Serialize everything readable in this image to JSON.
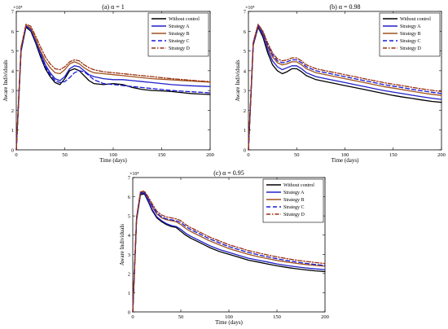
{
  "figure": {
    "colors": {
      "Without control": "#000000",
      "Strategy A": "#2020c8",
      "Strategy B": "#a0521e",
      "Strategy C": "#1a1ad8",
      "Strategy D": "#9a3010"
    },
    "dashes": {
      "Without control": "",
      "Strategy A": "",
      "Strategy B": "",
      "Strategy C": "5,3",
      "Strategy D": "5,2,1.5,2"
    }
  },
  "chart_data": [
    {
      "type": "line",
      "title": "(a) α = 1",
      "xlabel": "Time (days)",
      "ylabel": "Aware Individuals",
      "xlim": [
        0,
        200
      ],
      "ylim": [
        0,
        70000
      ],
      "xticks": [
        "0",
        "50",
        "100",
        "150",
        "200"
      ],
      "yticks": [
        "0",
        "1",
        "2",
        "3",
        "4",
        "5",
        "6",
        "7"
      ],
      "yscale_label": "×10⁴",
      "legend": "top-right",
      "x": [
        0,
        5,
        10,
        15,
        20,
        25,
        30,
        35,
        40,
        45,
        50,
        55,
        60,
        65,
        70,
        75,
        80,
        90,
        100,
        110,
        120,
        130,
        140,
        150,
        160,
        170,
        180,
        190,
        200
      ],
      "series": [
        {
          "name": "Without control",
          "values": [
            0,
            50000,
            62000,
            60000,
            54000,
            47000,
            41000,
            37000,
            34000,
            33000,
            36000,
            40000,
            41000,
            40000,
            37500,
            35000,
            33500,
            33000,
            33500,
            33000,
            31500,
            30500,
            30000,
            29800,
            29500,
            29000,
            28500,
            28200,
            28000
          ]
        },
        {
          "name": "Strategy A",
          "values": [
            0,
            51000,
            62500,
            61000,
            55000,
            49000,
            43000,
            39000,
            36000,
            35000,
            37000,
            41000,
            42500,
            42000,
            40000,
            38000,
            37000,
            36000,
            35500,
            35500,
            35000,
            34500,
            34000,
            33500,
            33000,
            32700,
            32400,
            32200,
            32000
          ]
        },
        {
          "name": "Strategy B",
          "values": [
            0,
            51500,
            63000,
            61500,
            56000,
            50000,
            45000,
            41500,
            39000,
            38500,
            40500,
            43500,
            44500,
            43500,
            41500,
            40000,
            39000,
            38500,
            38000,
            37500,
            37000,
            36500,
            36000,
            35700,
            35400,
            35100,
            34800,
            34500,
            34200
          ]
        },
        {
          "name": "Strategy C",
          "values": [
            0,
            51000,
            62500,
            60500,
            54500,
            48000,
            42000,
            38000,
            35000,
            34000,
            34500,
            36500,
            39000,
            40000,
            39500,
            37500,
            35500,
            33500,
            33000,
            32500,
            32000,
            31500,
            31000,
            30500,
            30000,
            29700,
            29400,
            29100,
            28800
          ]
        },
        {
          "name": "Strategy D",
          "values": [
            0,
            52000,
            63500,
            62500,
            57500,
            52000,
            47000,
            43500,
            41000,
            40500,
            42000,
            44500,
            45500,
            45000,
            43000,
            41500,
            40500,
            39500,
            39000,
            38500,
            38000,
            37500,
            37000,
            36500,
            36000,
            35600,
            35200,
            34800,
            34500
          ]
        }
      ]
    },
    {
      "type": "line",
      "title": "(b) α = 0.98",
      "xlabel": "Time (days)",
      "ylabel": "Aware Individuals",
      "xlim": [
        0,
        200
      ],
      "ylim": [
        0,
        70000
      ],
      "xticks": [
        "0",
        "50",
        "100",
        "150",
        "200"
      ],
      "yticks": [
        "0",
        "1",
        "2",
        "3",
        "4",
        "5",
        "6",
        "7"
      ],
      "yscale_label": "×10⁴",
      "legend": "top-right",
      "x": [
        0,
        5,
        10,
        15,
        20,
        25,
        30,
        35,
        40,
        45,
        50,
        55,
        60,
        70,
        80,
        90,
        100,
        110,
        120,
        130,
        140,
        150,
        160,
        170,
        180,
        190,
        200
      ],
      "series": [
        {
          "name": "Without control",
          "values": [
            0,
            53000,
            62000,
            57000,
            49000,
            43000,
            40000,
            38500,
            39500,
            41000,
            41000,
            39500,
            37500,
            35500,
            34500,
            33500,
            32500,
            31500,
            30500,
            29500,
            28500,
            27500,
            26700,
            26000,
            25200,
            24500,
            24000
          ]
        },
        {
          "name": "Strategy A",
          "values": [
            0,
            53500,
            62500,
            58000,
            50500,
            45000,
            42000,
            40500,
            41500,
            42500,
            42500,
            41000,
            39000,
            37000,
            36000,
            35000,
            34000,
            33000,
            32000,
            31000,
            30000,
            29200,
            28400,
            27600,
            26800,
            26100,
            25500
          ]
        },
        {
          "name": "Strategy B",
          "values": [
            0,
            54000,
            63000,
            59000,
            52000,
            47000,
            44000,
            43000,
            43500,
            44500,
            44500,
            43000,
            41000,
            39000,
            38000,
            37000,
            36000,
            35000,
            34000,
            33000,
            32000,
            31200,
            30400,
            29600,
            28800,
            28100,
            27500
          ]
        },
        {
          "name": "Strategy C",
          "values": [
            0,
            54000,
            63000,
            59500,
            53000,
            48000,
            45000,
            44000,
            44500,
            45500,
            45500,
            44000,
            42000,
            40000,
            39000,
            38000,
            37000,
            36000,
            35000,
            34000,
            33000,
            32200,
            31400,
            30600,
            29800,
            29100,
            28500
          ]
        },
        {
          "name": "Strategy D",
          "values": [
            0,
            54500,
            63500,
            60000,
            54000,
            49000,
            46000,
            45000,
            45500,
            46500,
            46500,
            45000,
            43000,
            41000,
            40000,
            39000,
            38000,
            37000,
            36000,
            35000,
            34000,
            33200,
            32400,
            31600,
            30800,
            30100,
            29500
          ]
        }
      ]
    },
    {
      "type": "line",
      "title": "(c) α = 0.95",
      "xlabel": "Time (days)",
      "ylabel": "Aware Individuals",
      "xlim": [
        0,
        200
      ],
      "ylim": [
        0,
        70000
      ],
      "xticks": [
        "0",
        "50",
        "100",
        "150",
        "200"
      ],
      "yticks": [
        "0",
        "1",
        "2",
        "3",
        "4",
        "5",
        "6",
        "7"
      ],
      "yscale_label": "×10⁴",
      "legend": "top-right",
      "x": [
        0,
        4,
        8,
        12,
        16,
        20,
        25,
        30,
        35,
        40,
        45,
        50,
        55,
        60,
        70,
        80,
        90,
        100,
        110,
        120,
        130,
        140,
        150,
        160,
        170,
        180,
        190,
        200
      ],
      "series": [
        {
          "name": "Without control",
          "values": [
            0,
            48000,
            61000,
            61500,
            57500,
            53000,
            49000,
            47000,
            45500,
            44500,
            44000,
            42000,
            40000,
            38500,
            36000,
            33500,
            31500,
            30000,
            28500,
            27000,
            26000,
            25000,
            24000,
            23200,
            22500,
            21900,
            21400,
            21000
          ]
        },
        {
          "name": "Strategy A",
          "values": [
            0,
            48500,
            61500,
            62000,
            58000,
            53500,
            49500,
            47500,
            46000,
            45000,
            44500,
            43000,
            41000,
            39500,
            37000,
            34500,
            32500,
            31000,
            29500,
            28000,
            27000,
            26000,
            25000,
            24200,
            23500,
            22900,
            22400,
            22000
          ]
        },
        {
          "name": "Strategy B",
          "values": [
            0,
            49000,
            62000,
            62500,
            59000,
            55000,
            51000,
            49000,
            48000,
            47500,
            47000,
            45500,
            43500,
            42000,
            39500,
            37000,
            35000,
            33000,
            31500,
            30000,
            28800,
            27800,
            26800,
            26000,
            25300,
            24700,
            24200,
            23800
          ]
        },
        {
          "name": "Strategy C",
          "values": [
            0,
            49000,
            62000,
            62500,
            59000,
            55500,
            51500,
            49500,
            48500,
            48000,
            47500,
            46500,
            44500,
            43000,
            40500,
            38000,
            36000,
            34000,
            32500,
            31000,
            29800,
            28700,
            27700,
            26800,
            26000,
            25300,
            24700,
            24200
          ]
        },
        {
          "name": "Strategy D",
          "values": [
            0,
            49500,
            62500,
            63000,
            60000,
            56500,
            52500,
            50500,
            49500,
            49000,
            48500,
            47500,
            45500,
            44000,
            41500,
            39000,
            37000,
            35000,
            33500,
            32000,
            30800,
            29700,
            28700,
            27800,
            27000,
            26300,
            25700,
            25200
          ]
        }
      ]
    }
  ]
}
